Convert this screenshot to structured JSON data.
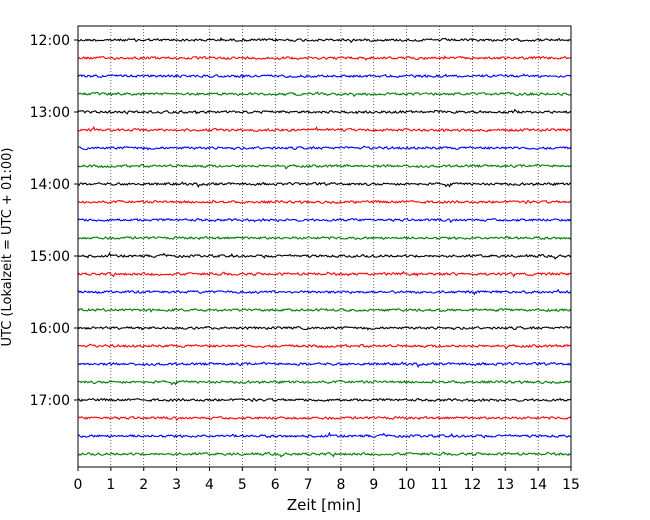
{
  "chart_data": {
    "type": "line",
    "title": "",
    "xlabel": "Zeit  [min]",
    "ylabel": "UTC (Lokalzeit = UTC + 01:00)",
    "xlim": [
      0,
      15
    ],
    "x_ticks": [
      0,
      1,
      2,
      3,
      4,
      5,
      6,
      7,
      8,
      9,
      10,
      11,
      12,
      13,
      14,
      15
    ],
    "grid": "vertical dotted",
    "y_ticks": [
      {
        "label": "12:00",
        "offset_hours": 0
      },
      {
        "label": "13:00",
        "offset_hours": 1
      },
      {
        "label": "14:00",
        "offset_hours": 2
      },
      {
        "label": "15:00",
        "offset_hours": 3
      },
      {
        "label": "16:00",
        "offset_hours": 4
      },
      {
        "label": "17:00",
        "offset_hours": 5
      }
    ],
    "traces": {
      "start": "12:00",
      "interval_minutes": 15,
      "count": 24,
      "colors": [
        "#000000",
        "#ff0000",
        "#0000ff",
        "#008000"
      ]
    }
  }
}
